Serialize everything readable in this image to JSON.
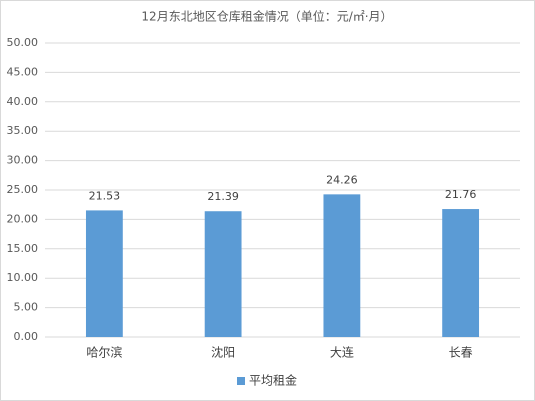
{
  "chart_data": {
    "type": "bar",
    "title": "12月东北地区仓库租金情况（单位：元/㎡·月）",
    "categories": [
      "哈尔滨",
      "沈阳",
      "大连",
      "长春"
    ],
    "series": [
      {
        "name": "平均租金",
        "color": "#5b9bd5",
        "values": [
          21.53,
          21.39,
          24.26,
          21.76
        ]
      }
    ],
    "ylim": [
      0,
      50
    ],
    "yticks": [
      {
        "value": 0,
        "label": "0.00"
      },
      {
        "value": 5,
        "label": "5.00"
      },
      {
        "value": 10,
        "label": "10.00"
      },
      {
        "value": 15,
        "label": "15.00"
      },
      {
        "value": 20,
        "label": "20.00"
      },
      {
        "value": 25,
        "label": "25.00"
      },
      {
        "value": 30,
        "label": "30.00"
      },
      {
        "value": 35,
        "label": "35.00"
      },
      {
        "value": 40,
        "label": "40.00"
      },
      {
        "value": 45,
        "label": "45.00"
      },
      {
        "value": 50,
        "label": "50.00"
      }
    ],
    "grid": true,
    "legend": "bottom"
  }
}
